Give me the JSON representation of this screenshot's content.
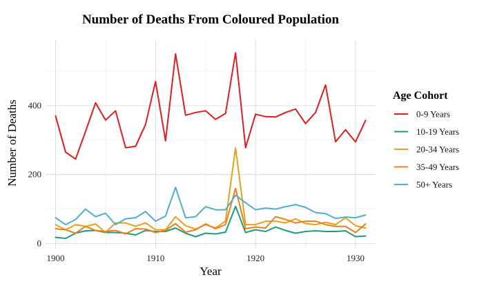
{
  "chart_data": {
    "type": "line",
    "title": "Number of Deaths From Coloured Population",
    "xlabel": "Year",
    "ylabel": "Number of Deaths",
    "xlim": [
      1899,
      1932
    ],
    "ylim": [
      -15,
      590
    ],
    "x_ticks": [
      1900,
      1910,
      1920,
      1930
    ],
    "y_ticks": [
      0,
      200,
      400
    ],
    "grid": true,
    "legend": {
      "title": "Age Cohort",
      "position": "right"
    },
    "x": [
      1900,
      1901,
      1902,
      1903,
      1904,
      1905,
      1906,
      1907,
      1908,
      1909,
      1910,
      1911,
      1912,
      1913,
      1914,
      1915,
      1916,
      1917,
      1918,
      1919,
      1920,
      1921,
      1922,
      1923,
      1924,
      1925,
      1926,
      1927,
      1928,
      1929,
      1930,
      1931
    ],
    "series": [
      {
        "name": "0-9 Years",
        "color": "#e41a1c",
        "values": [
          370,
          265,
          245,
          325,
          408,
          358,
          385,
          278,
          282,
          345,
          470,
          298,
          550,
          372,
          380,
          385,
          360,
          377,
          553,
          278,
          375,
          368,
          367,
          380,
          390,
          348,
          380,
          460,
          295,
          330,
          295,
          357
        ]
      },
      {
        "name": "10-19 Years",
        "color": "#1b9e77",
        "values": [
          18,
          15,
          30,
          37,
          38,
          32,
          32,
          30,
          25,
          38,
          35,
          35,
          45,
          30,
          20,
          30,
          28,
          33,
          108,
          32,
          40,
          35,
          48,
          38,
          30,
          35,
          37,
          35,
          35,
          37,
          20,
          22
        ]
      },
      {
        "name": "20-34 Years",
        "color": "#e6a117",
        "values": [
          55,
          40,
          55,
          50,
          57,
          32,
          60,
          60,
          50,
          60,
          40,
          40,
          78,
          52,
          42,
          55,
          45,
          65,
          277,
          55,
          55,
          65,
          65,
          60,
          72,
          58,
          55,
          62,
          55,
          75,
          52,
          45
        ]
      },
      {
        "name": "35-49 Years",
        "color": "#f07d1a",
        "values": [
          43,
          40,
          30,
          50,
          38,
          35,
          38,
          28,
          43,
          42,
          32,
          38,
          58,
          33,
          40,
          57,
          43,
          55,
          160,
          43,
          48,
          45,
          78,
          70,
          60,
          65,
          65,
          55,
          50,
          50,
          32,
          57
        ]
      },
      {
        "name": "50+ Years",
        "color": "#4eaed0",
        "values": [
          75,
          55,
          70,
          100,
          78,
          88,
          55,
          72,
          75,
          93,
          65,
          80,
          163,
          75,
          78,
          107,
          98,
          98,
          140,
          118,
          98,
          103,
          100,
          107,
          113,
          105,
          90,
          87,
          73,
          77,
          75,
          83
        ]
      }
    ]
  }
}
